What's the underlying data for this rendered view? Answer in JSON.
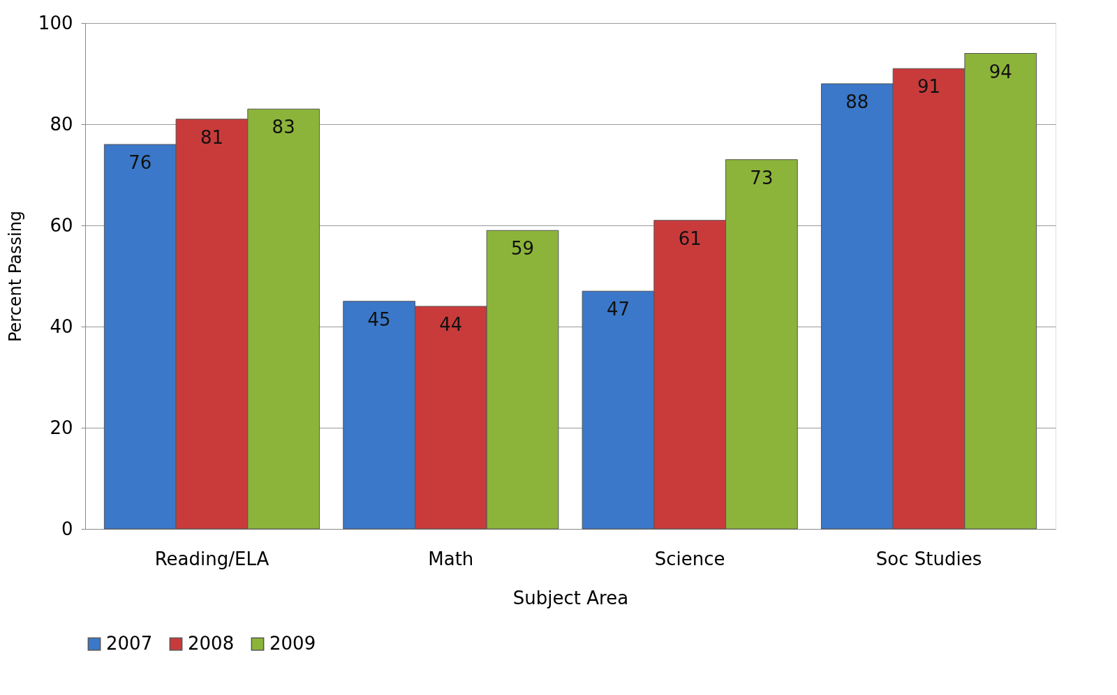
{
  "chart_data": {
    "type": "bar",
    "xlabel": "Subject Area",
    "ylabel": "Percent Passing",
    "categories": [
      "Reading/ELA",
      "Math",
      "Science",
      "Soc Studies"
    ],
    "series": [
      {
        "name": "2007",
        "color": "#3b78c9",
        "values": [
          76,
          45,
          47,
          88
        ]
      },
      {
        "name": "2008",
        "color": "#c93b3b",
        "values": [
          81,
          44,
          61,
          91
        ]
      },
      {
        "name": "2009",
        "color": "#8db43a",
        "values": [
          83,
          59,
          73,
          94
        ]
      }
    ],
    "ylim": [
      0,
      100
    ],
    "yticks": [
      0,
      20,
      40,
      60,
      80,
      100
    ],
    "grid": "y",
    "legend": "bottom",
    "data_labels": true
  }
}
